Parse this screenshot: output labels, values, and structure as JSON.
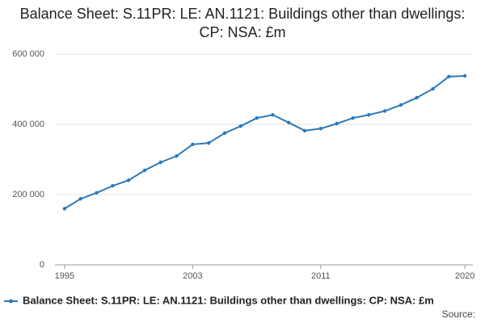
{
  "chart_data": {
    "type": "line",
    "title": "Balance Sheet: S.11PR: LE: AN.1121: Buildings other than dwellings: CP: NSA: £m",
    "source": "Source:",
    "x": [
      1995,
      1996,
      1997,
      1998,
      1999,
      2000,
      2001,
      2002,
      2003,
      2004,
      2005,
      2006,
      2007,
      2008,
      2009,
      2010,
      2011,
      2012,
      2013,
      2014,
      2015,
      2016,
      2017,
      2018,
      2019,
      2020
    ],
    "series": [
      {
        "name": "Balance Sheet: S.11PR: LE: AN.1121: Buildings other than dwellings: CP: NSA: £m",
        "color": "#2a7ab9",
        "values": [
          160000,
          188000,
          205000,
          225000,
          241000,
          269000,
          292000,
          310000,
          343000,
          347000,
          375000,
          395000,
          418000,
          427000,
          405000,
          382000,
          388000,
          402000,
          418000,
          427000,
          438000,
          455000,
          476000,
          501000,
          536000,
          538000
        ]
      }
    ],
    "xlim": [
      1994.5,
      2020.5
    ],
    "xticks": [
      1995,
      2003,
      2011,
      2020
    ],
    "ylim": [
      0,
      600000
    ],
    "yticks": [
      0,
      {
        "value": 200000,
        "label": "200 000"
      },
      {
        "value": 400000,
        "label": "400 000"
      },
      {
        "value": 600000,
        "label": "600 000"
      }
    ],
    "grid": true
  }
}
